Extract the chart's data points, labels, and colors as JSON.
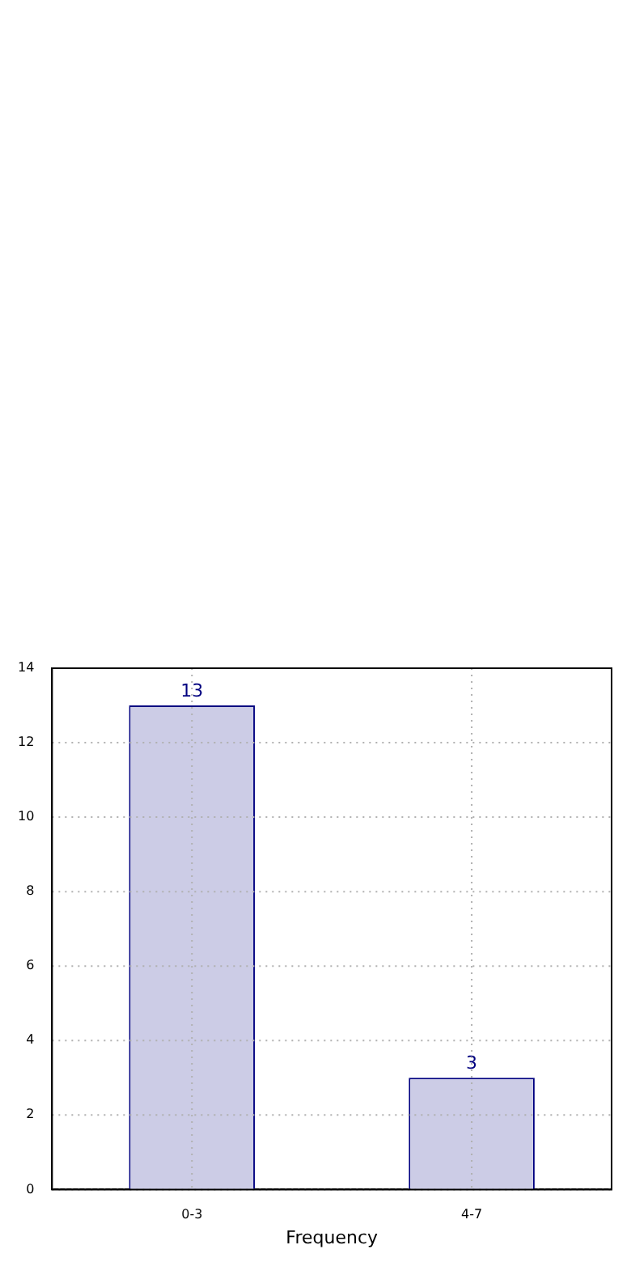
{
  "chart_data": {
    "type": "bar",
    "xlabel": "Frequency",
    "categories": [
      "0-3",
      "4-7"
    ],
    "series": [
      {
        "color": "#cccce6",
        "values": [
          13,
          3
        ]
      }
    ],
    "ylim": [
      0,
      14
    ],
    "yticks": [
      0,
      2,
      4,
      6,
      8,
      10,
      12,
      14
    ],
    "grid": true,
    "data_labels": true
  }
}
